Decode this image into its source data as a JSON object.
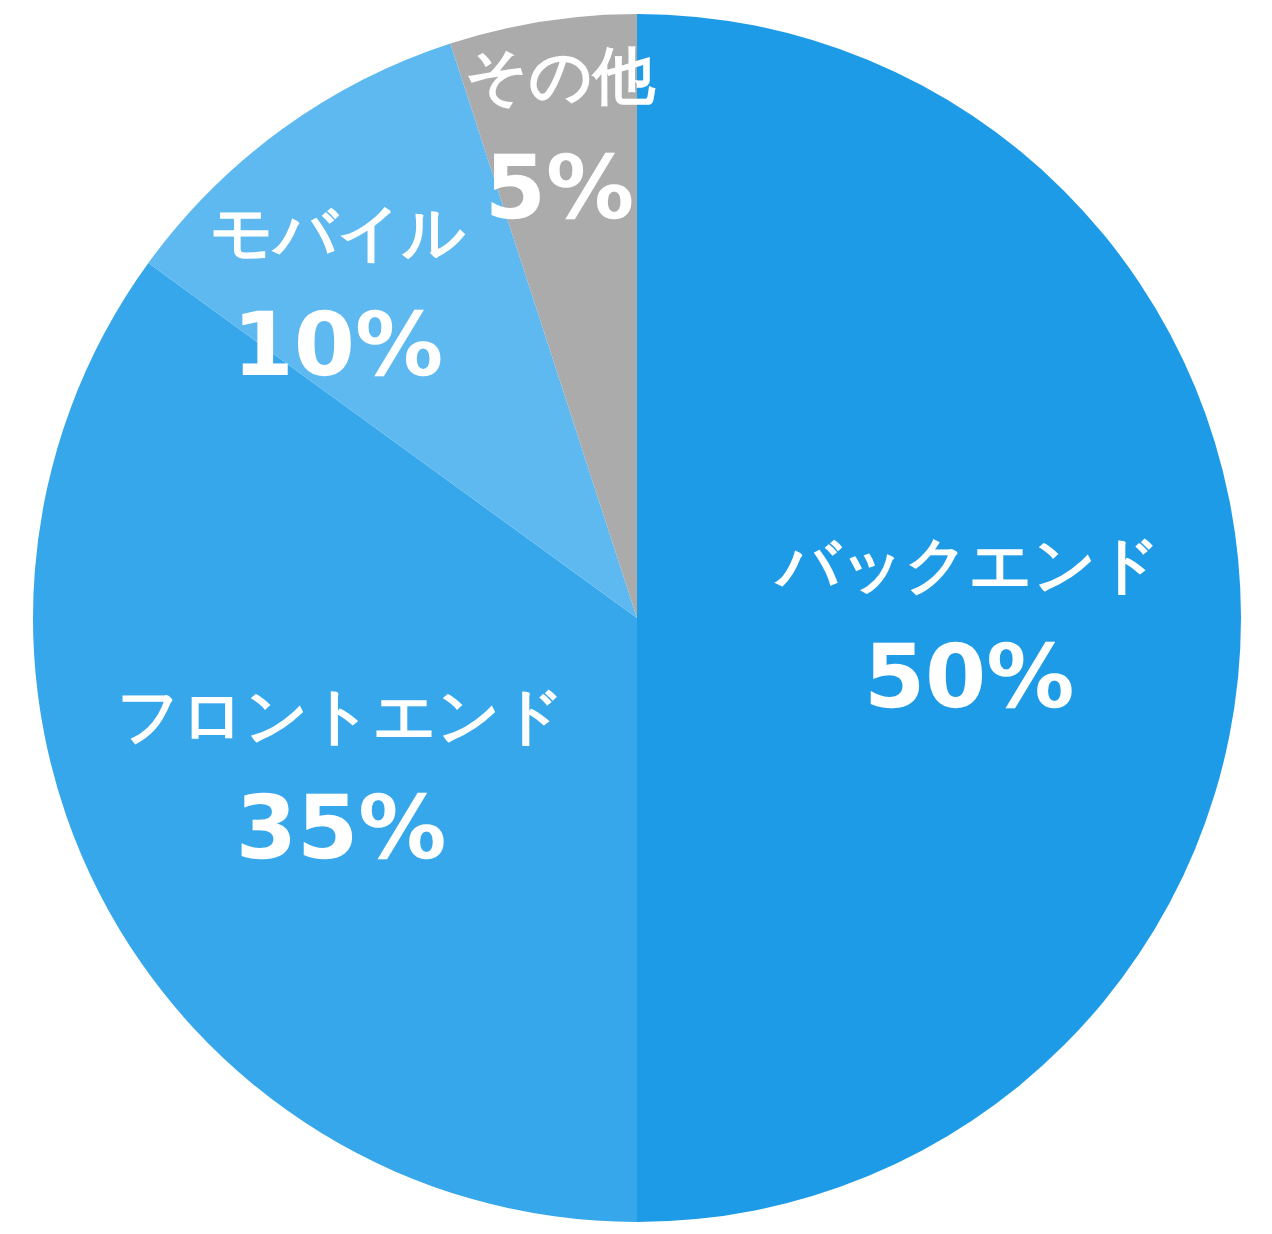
{
  "chart_data": {
    "type": "pie",
    "categories": [
      "バックエンド",
      "フロントエンド",
      "モバイル",
      "その他"
    ],
    "values": [
      50,
      35,
      10,
      5
    ],
    "colors": [
      "#1e9be6",
      "#35a7ea",
      "#5db9f0",
      "#ababab"
    ],
    "value_labels": [
      "50%",
      "35%",
      "10%",
      "5%"
    ]
  }
}
